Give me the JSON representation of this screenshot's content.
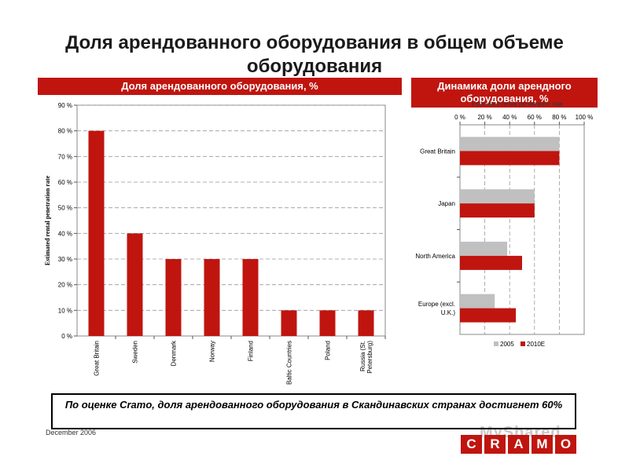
{
  "title": "Доля арендованного оборудования в общем объеме оборудования",
  "left_header": "Доля арендованного оборудования, %",
  "right_header": "Динамика доли арендного оборудования, %",
  "right_small_label": "Estimated rental penetration rate",
  "conclusion": "По оценке Cramo, доля арендованного оборудования в Скандинавских странах достигнет 60%",
  "date": "December 2006",
  "watermark": "MyShared",
  "logo_letters": [
    "C",
    "R",
    "A",
    "M",
    "O"
  ],
  "colors": {
    "accent": "#c0150f",
    "bar_2005": "#c0c0c0",
    "bar_2010": "#c0150f"
  },
  "chart_data": [
    {
      "type": "bar",
      "orientation": "vertical",
      "ylabel": "Estimated rental penetration rate",
      "ylim": [
        0,
        90
      ],
      "y_ticks": [
        0,
        10,
        20,
        30,
        40,
        50,
        60,
        70,
        80,
        90
      ],
      "y_tick_labels": [
        "0 %",
        "10 %",
        "20 %",
        "30 %",
        "40 %",
        "50 %",
        "60 %",
        "70 %",
        "80 %",
        "90 %"
      ],
      "grid": true,
      "categories": [
        "Great Britain",
        "Sweden",
        "Denmark",
        "Norway",
        "Finland",
        "Baltic Countries",
        "Poland",
        "Russia (St. Petersburg)"
      ],
      "category_lines": [
        [
          "Great Britain"
        ],
        [
          "Sweden"
        ],
        [
          "Denmark"
        ],
        [
          "Norway"
        ],
        [
          "Finland"
        ],
        [
          "Baltic Countries"
        ],
        [
          "Poland"
        ],
        [
          "Russia (St.",
          "Petersburg)"
        ]
      ],
      "values": [
        80,
        40,
        30,
        30,
        30,
        10,
        10,
        10
      ]
    },
    {
      "type": "bar",
      "orientation": "horizontal",
      "xlim": [
        0,
        100
      ],
      "x_ticks": [
        0,
        20,
        40,
        60,
        80,
        100
      ],
      "x_tick_labels": [
        "0 %",
        "20 %",
        "40 %",
        "60 %",
        "80 %",
        "100 %"
      ],
      "grid": true,
      "categories": [
        "Great Britain",
        "Japan",
        "North America",
        "Europe (excl. U.K.)"
      ],
      "category_lines": [
        [
          "Great Britain"
        ],
        [
          "Japan"
        ],
        [
          "North America"
        ],
        [
          "Europe (excl.",
          "U.K.)"
        ]
      ],
      "series": [
        {
          "name": "2005",
          "values": [
            80,
            60,
            38,
            28
          ]
        },
        {
          "name": "2010E",
          "values": [
            80,
            60,
            50,
            45
          ]
        }
      ],
      "legend": "bottom"
    }
  ]
}
